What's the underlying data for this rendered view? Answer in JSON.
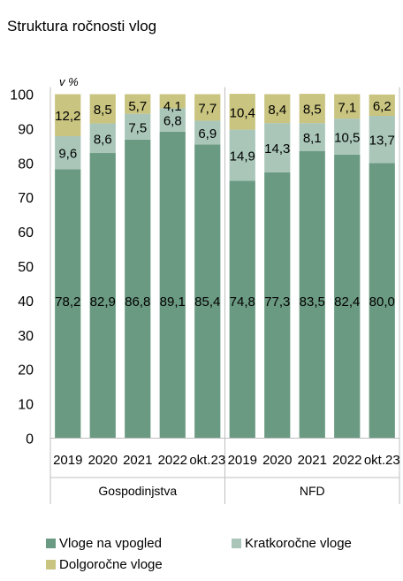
{
  "title": "Struktura ročnosti vlog",
  "chart_data": {
    "type": "bar",
    "stacked": true,
    "title": "Struktura ročnosti vlog",
    "unit_label": "v %",
    "ylim": [
      0,
      100
    ],
    "yticks": [
      0,
      10,
      20,
      30,
      40,
      50,
      60,
      70,
      80,
      90,
      100
    ],
    "groups": [
      {
        "name": "Gospodinjstva",
        "categories": [
          "2019",
          "2020",
          "2021",
          "2022",
          "okt.23"
        ]
      },
      {
        "name": "NFD",
        "categories": [
          "2019",
          "2020",
          "2021",
          "2022",
          "okt.23"
        ]
      }
    ],
    "series": [
      {
        "name": "Vloge na vpogled",
        "color": "#6b9a82",
        "values": [
          78.2,
          82.9,
          86.8,
          89.1,
          85.4,
          74.8,
          77.3,
          83.5,
          82.4,
          80.0
        ],
        "labels": [
          "78,2",
          "82,9",
          "86,8",
          "89,1",
          "85,4",
          "74,8",
          "77,3",
          "83,5",
          "82,4",
          "80,0"
        ]
      },
      {
        "name": "Kratkoročne vloge",
        "color": "#a9c6b9",
        "values": [
          9.6,
          8.6,
          7.5,
          6.8,
          6.9,
          14.9,
          14.3,
          8.1,
          10.5,
          13.7
        ],
        "labels": [
          "9,6",
          "8,6",
          "7,5",
          "6,8",
          "6,9",
          "14,9",
          "14,3",
          "8,1",
          "10,5",
          "13,7"
        ]
      },
      {
        "name": "Dolgoročne vloge",
        "color": "#c9c47f",
        "values": [
          12.2,
          8.5,
          5.7,
          4.1,
          7.7,
          10.4,
          8.4,
          8.5,
          7.1,
          6.2
        ],
        "labels": [
          "12,2",
          "8,5",
          "5,7",
          "4,1",
          "7,7",
          "10,4",
          "8,4",
          "8,5",
          "7,1",
          "6,2"
        ]
      }
    ],
    "legend": "bottom"
  }
}
